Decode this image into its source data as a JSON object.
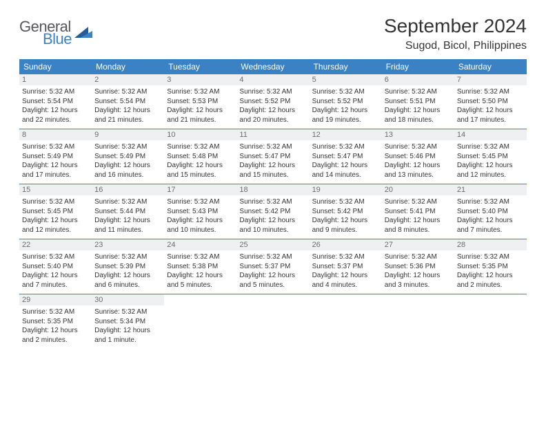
{
  "brand": {
    "word1": "General",
    "word2": "Blue"
  },
  "title": "September 2024",
  "location": "Sugod, Bicol, Philippines",
  "colors": {
    "accent": "#3b82c4",
    "daynum_bg": "#eef0f2",
    "text": "#333333",
    "muted": "#6b6b6b"
  },
  "weekdays": [
    "Sunday",
    "Monday",
    "Tuesday",
    "Wednesday",
    "Thursday",
    "Friday",
    "Saturday"
  ],
  "weeks": [
    [
      {
        "n": "1",
        "sr": "Sunrise: 5:32 AM",
        "ss": "Sunset: 5:54 PM",
        "d1": "Daylight: 12 hours",
        "d2": "and 22 minutes."
      },
      {
        "n": "2",
        "sr": "Sunrise: 5:32 AM",
        "ss": "Sunset: 5:54 PM",
        "d1": "Daylight: 12 hours",
        "d2": "and 21 minutes."
      },
      {
        "n": "3",
        "sr": "Sunrise: 5:32 AM",
        "ss": "Sunset: 5:53 PM",
        "d1": "Daylight: 12 hours",
        "d2": "and 21 minutes."
      },
      {
        "n": "4",
        "sr": "Sunrise: 5:32 AM",
        "ss": "Sunset: 5:52 PM",
        "d1": "Daylight: 12 hours",
        "d2": "and 20 minutes."
      },
      {
        "n": "5",
        "sr": "Sunrise: 5:32 AM",
        "ss": "Sunset: 5:52 PM",
        "d1": "Daylight: 12 hours",
        "d2": "and 19 minutes."
      },
      {
        "n": "6",
        "sr": "Sunrise: 5:32 AM",
        "ss": "Sunset: 5:51 PM",
        "d1": "Daylight: 12 hours",
        "d2": "and 18 minutes."
      },
      {
        "n": "7",
        "sr": "Sunrise: 5:32 AM",
        "ss": "Sunset: 5:50 PM",
        "d1": "Daylight: 12 hours",
        "d2": "and 17 minutes."
      }
    ],
    [
      {
        "n": "8",
        "sr": "Sunrise: 5:32 AM",
        "ss": "Sunset: 5:49 PM",
        "d1": "Daylight: 12 hours",
        "d2": "and 17 minutes."
      },
      {
        "n": "9",
        "sr": "Sunrise: 5:32 AM",
        "ss": "Sunset: 5:49 PM",
        "d1": "Daylight: 12 hours",
        "d2": "and 16 minutes."
      },
      {
        "n": "10",
        "sr": "Sunrise: 5:32 AM",
        "ss": "Sunset: 5:48 PM",
        "d1": "Daylight: 12 hours",
        "d2": "and 15 minutes."
      },
      {
        "n": "11",
        "sr": "Sunrise: 5:32 AM",
        "ss": "Sunset: 5:47 PM",
        "d1": "Daylight: 12 hours",
        "d2": "and 15 minutes."
      },
      {
        "n": "12",
        "sr": "Sunrise: 5:32 AM",
        "ss": "Sunset: 5:47 PM",
        "d1": "Daylight: 12 hours",
        "d2": "and 14 minutes."
      },
      {
        "n": "13",
        "sr": "Sunrise: 5:32 AM",
        "ss": "Sunset: 5:46 PM",
        "d1": "Daylight: 12 hours",
        "d2": "and 13 minutes."
      },
      {
        "n": "14",
        "sr": "Sunrise: 5:32 AM",
        "ss": "Sunset: 5:45 PM",
        "d1": "Daylight: 12 hours",
        "d2": "and 12 minutes."
      }
    ],
    [
      {
        "n": "15",
        "sr": "Sunrise: 5:32 AM",
        "ss": "Sunset: 5:45 PM",
        "d1": "Daylight: 12 hours",
        "d2": "and 12 minutes."
      },
      {
        "n": "16",
        "sr": "Sunrise: 5:32 AM",
        "ss": "Sunset: 5:44 PM",
        "d1": "Daylight: 12 hours",
        "d2": "and 11 minutes."
      },
      {
        "n": "17",
        "sr": "Sunrise: 5:32 AM",
        "ss": "Sunset: 5:43 PM",
        "d1": "Daylight: 12 hours",
        "d2": "and 10 minutes."
      },
      {
        "n": "18",
        "sr": "Sunrise: 5:32 AM",
        "ss": "Sunset: 5:42 PM",
        "d1": "Daylight: 12 hours",
        "d2": "and 10 minutes."
      },
      {
        "n": "19",
        "sr": "Sunrise: 5:32 AM",
        "ss": "Sunset: 5:42 PM",
        "d1": "Daylight: 12 hours",
        "d2": "and 9 minutes."
      },
      {
        "n": "20",
        "sr": "Sunrise: 5:32 AM",
        "ss": "Sunset: 5:41 PM",
        "d1": "Daylight: 12 hours",
        "d2": "and 8 minutes."
      },
      {
        "n": "21",
        "sr": "Sunrise: 5:32 AM",
        "ss": "Sunset: 5:40 PM",
        "d1": "Daylight: 12 hours",
        "d2": "and 7 minutes."
      }
    ],
    [
      {
        "n": "22",
        "sr": "Sunrise: 5:32 AM",
        "ss": "Sunset: 5:40 PM",
        "d1": "Daylight: 12 hours",
        "d2": "and 7 minutes."
      },
      {
        "n": "23",
        "sr": "Sunrise: 5:32 AM",
        "ss": "Sunset: 5:39 PM",
        "d1": "Daylight: 12 hours",
        "d2": "and 6 minutes."
      },
      {
        "n": "24",
        "sr": "Sunrise: 5:32 AM",
        "ss": "Sunset: 5:38 PM",
        "d1": "Daylight: 12 hours",
        "d2": "and 5 minutes."
      },
      {
        "n": "25",
        "sr": "Sunrise: 5:32 AM",
        "ss": "Sunset: 5:37 PM",
        "d1": "Daylight: 12 hours",
        "d2": "and 5 minutes."
      },
      {
        "n": "26",
        "sr": "Sunrise: 5:32 AM",
        "ss": "Sunset: 5:37 PM",
        "d1": "Daylight: 12 hours",
        "d2": "and 4 minutes."
      },
      {
        "n": "27",
        "sr": "Sunrise: 5:32 AM",
        "ss": "Sunset: 5:36 PM",
        "d1": "Daylight: 12 hours",
        "d2": "and 3 minutes."
      },
      {
        "n": "28",
        "sr": "Sunrise: 5:32 AM",
        "ss": "Sunset: 5:35 PM",
        "d1": "Daylight: 12 hours",
        "d2": "and 2 minutes."
      }
    ],
    [
      {
        "n": "29",
        "sr": "Sunrise: 5:32 AM",
        "ss": "Sunset: 5:35 PM",
        "d1": "Daylight: 12 hours",
        "d2": "and 2 minutes."
      },
      {
        "n": "30",
        "sr": "Sunrise: 5:32 AM",
        "ss": "Sunset: 5:34 PM",
        "d1": "Daylight: 12 hours",
        "d2": "and 1 minute."
      },
      null,
      null,
      null,
      null,
      null
    ]
  ]
}
